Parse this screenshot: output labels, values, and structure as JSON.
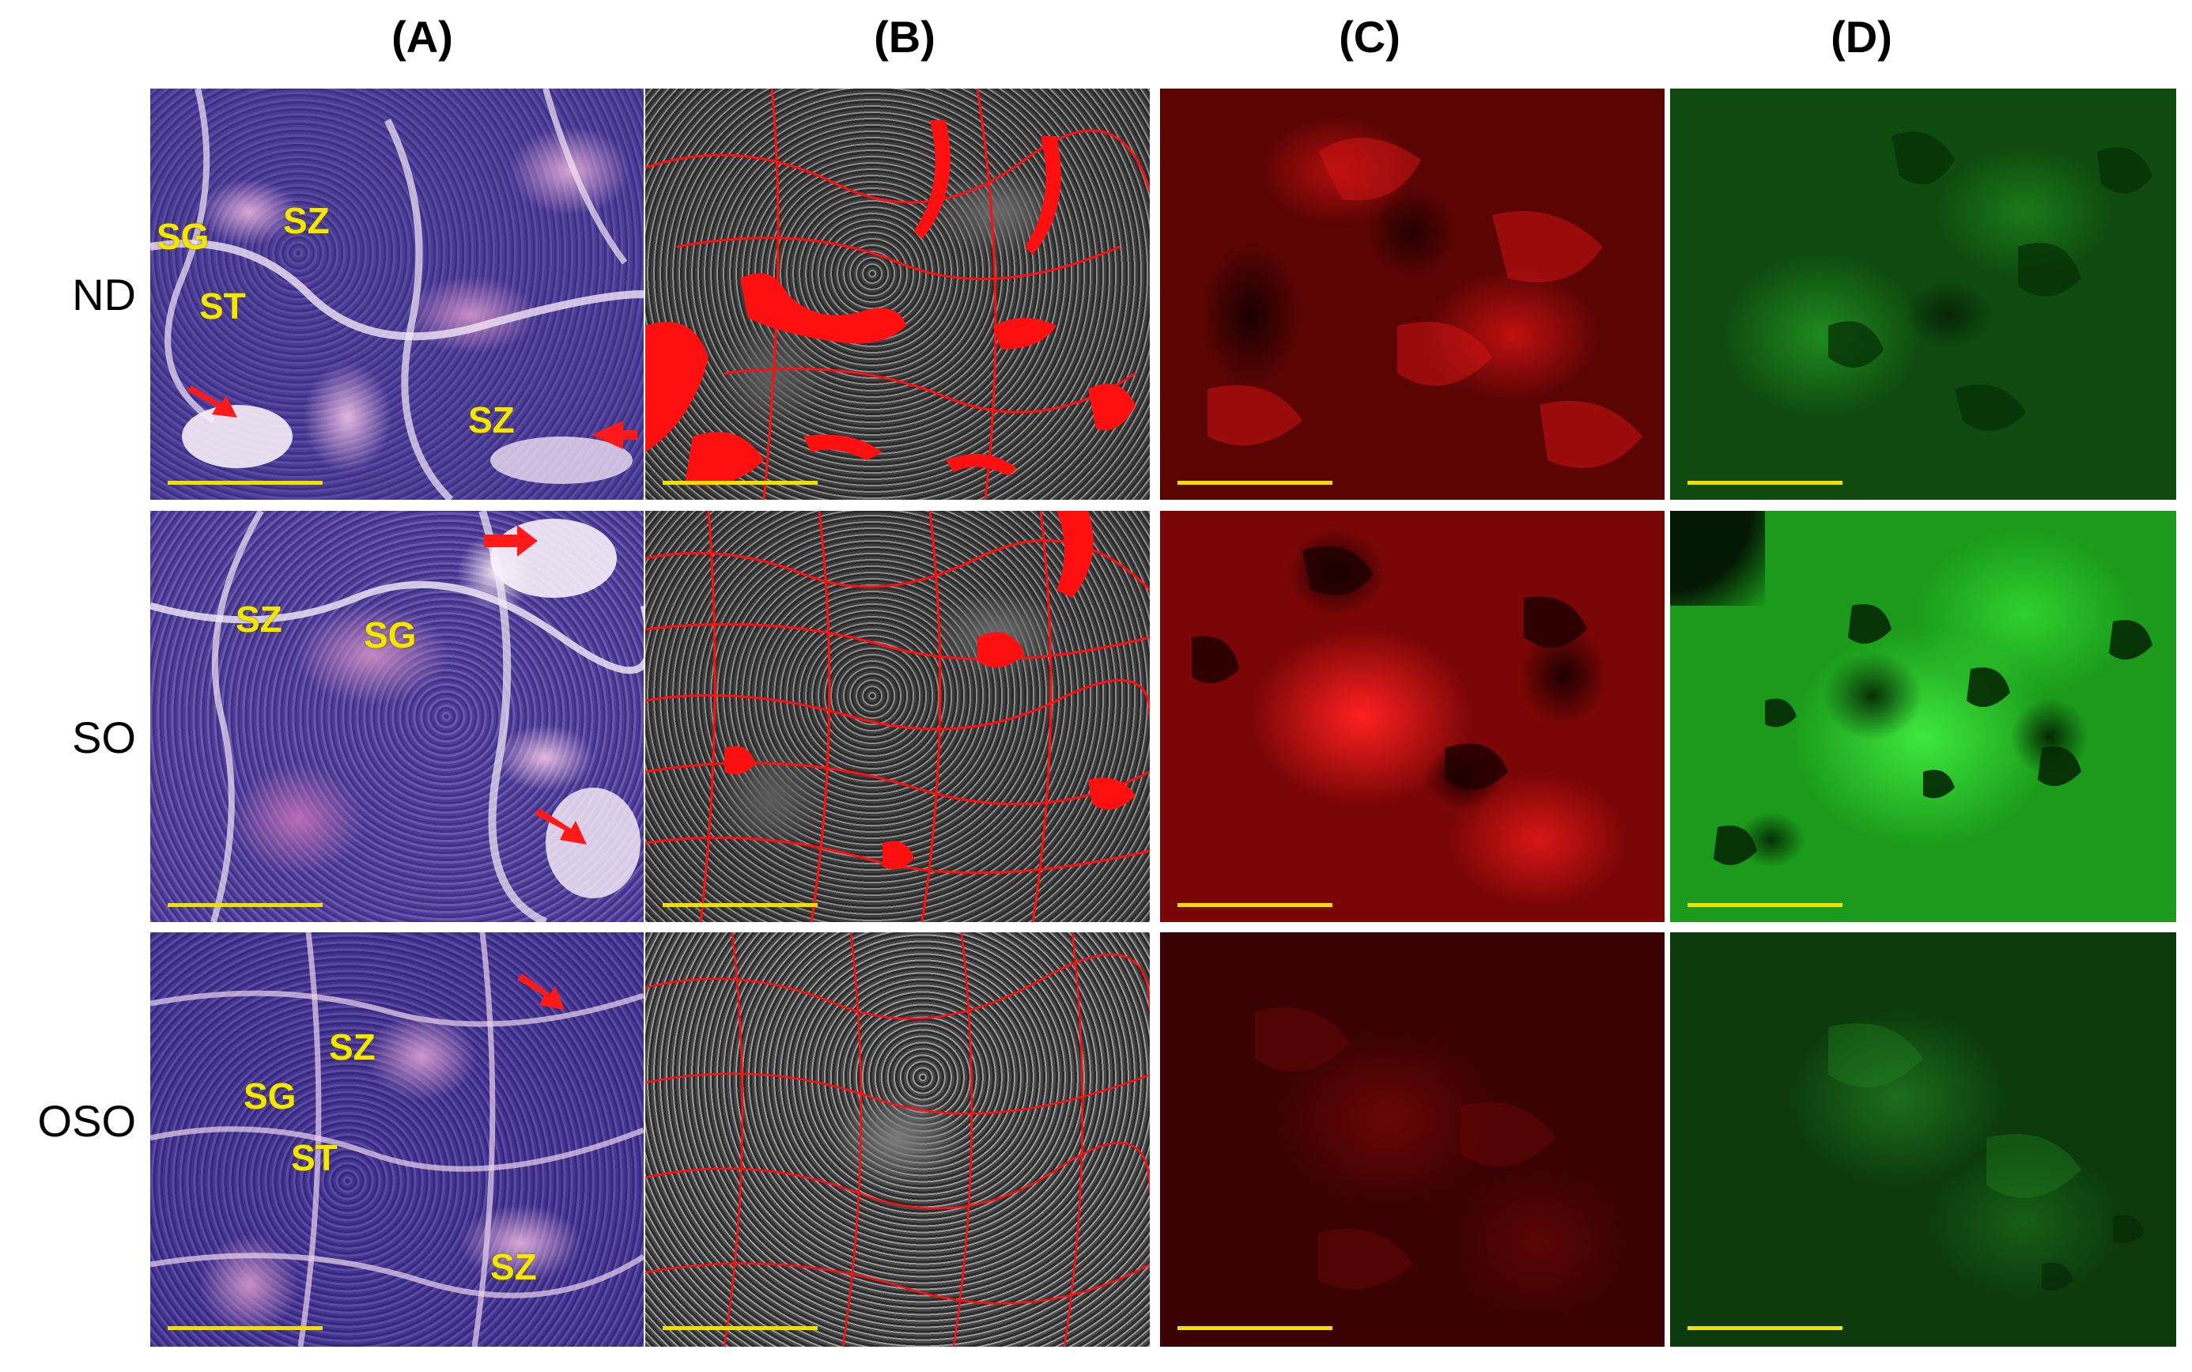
{
  "columns": [
    "(A)",
    "(B)",
    "(C)",
    "(D)"
  ],
  "rows": [
    "ND",
    "SO",
    "OSO"
  ],
  "tissue_labels": {
    "nd": [
      "SG",
      "SZ",
      "ST",
      "SZ"
    ],
    "so": [
      "SZ",
      "SG"
    ],
    "oso": [
      "SZ",
      "SG",
      "ST",
      "SZ"
    ]
  },
  "colors": {
    "label_yellow": "#f3e600",
    "arrow_red": "#ff1a1a",
    "scale_bar": "#f0e000"
  },
  "icons": {
    "arrow": "red-arrow-icon"
  }
}
